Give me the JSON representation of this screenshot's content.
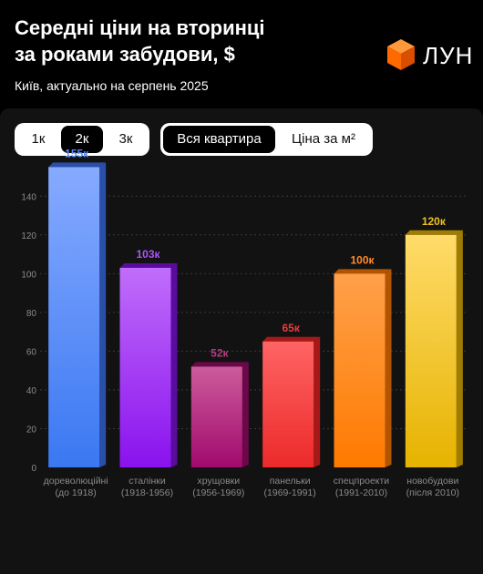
{
  "header": {
    "title_line1": "Середні ціни на вторинці",
    "title_line2": "за роками забудови, $",
    "subtitle": "Київ, актуально на серпень 2025",
    "logo_text": "ЛУН"
  },
  "controls": {
    "rooms": [
      {
        "label": "1к",
        "active": false
      },
      {
        "label": "2к",
        "active": true
      },
      {
        "label": "3к",
        "active": false
      }
    ],
    "metric": [
      {
        "label": "Вся квартира",
        "active": true
      },
      {
        "label": "Ціна за м²",
        "active": false
      }
    ]
  },
  "colors": {
    "background": "#000000",
    "panel": "#121212",
    "grid": "#3a3a3a",
    "axis_text": "#8a8a8a"
  },
  "chart_data": {
    "type": "bar",
    "ylim": [
      0,
      150
    ],
    "yticks": [
      0,
      20,
      40,
      60,
      80,
      100,
      120,
      140
    ],
    "grid": true,
    "categories": [
      {
        "line1": "дореволюційні",
        "line2": "(до 1918)"
      },
      {
        "line1": "сталінки",
        "line2": "(1918-1956)"
      },
      {
        "line1": "хрущовки",
        "line2": "(1956-1969)"
      },
      {
        "line1": "панельки",
        "line2": "(1969-1991)"
      },
      {
        "line1": "спецпроекти",
        "line2": "(1991-2010)"
      },
      {
        "line1": "новобудови",
        "line2": "(після 2010)"
      }
    ],
    "values": [
      155,
      103,
      52,
      65,
      100,
      120
    ],
    "value_labels": [
      "155к",
      "103к",
      "52к",
      "65к",
      "100к",
      "120к"
    ],
    "bar_colors": [
      {
        "top": "#86aaff",
        "bottom": "#3a78f2",
        "side": "#2a4fa8",
        "label": "#5b8cf5"
      },
      {
        "top": "#c06dfb",
        "bottom": "#8a12ee",
        "side": "#5a0c9e",
        "label": "#a955f7"
      },
      {
        "top": "#cc5b9c",
        "bottom": "#a10a6c",
        "side": "#6c0849",
        "label": "#b93b83"
      },
      {
        "top": "#ff6464",
        "bottom": "#ec2a2a",
        "side": "#a81818",
        "label": "#ec3b3b"
      },
      {
        "top": "#ffa04a",
        "bottom": "#ff7a00",
        "side": "#b35400",
        "label": "#ff8a2a"
      },
      {
        "top": "#ffdb6a",
        "bottom": "#e6b300",
        "side": "#a07d00",
        "label": "#f0c020"
      }
    ]
  }
}
